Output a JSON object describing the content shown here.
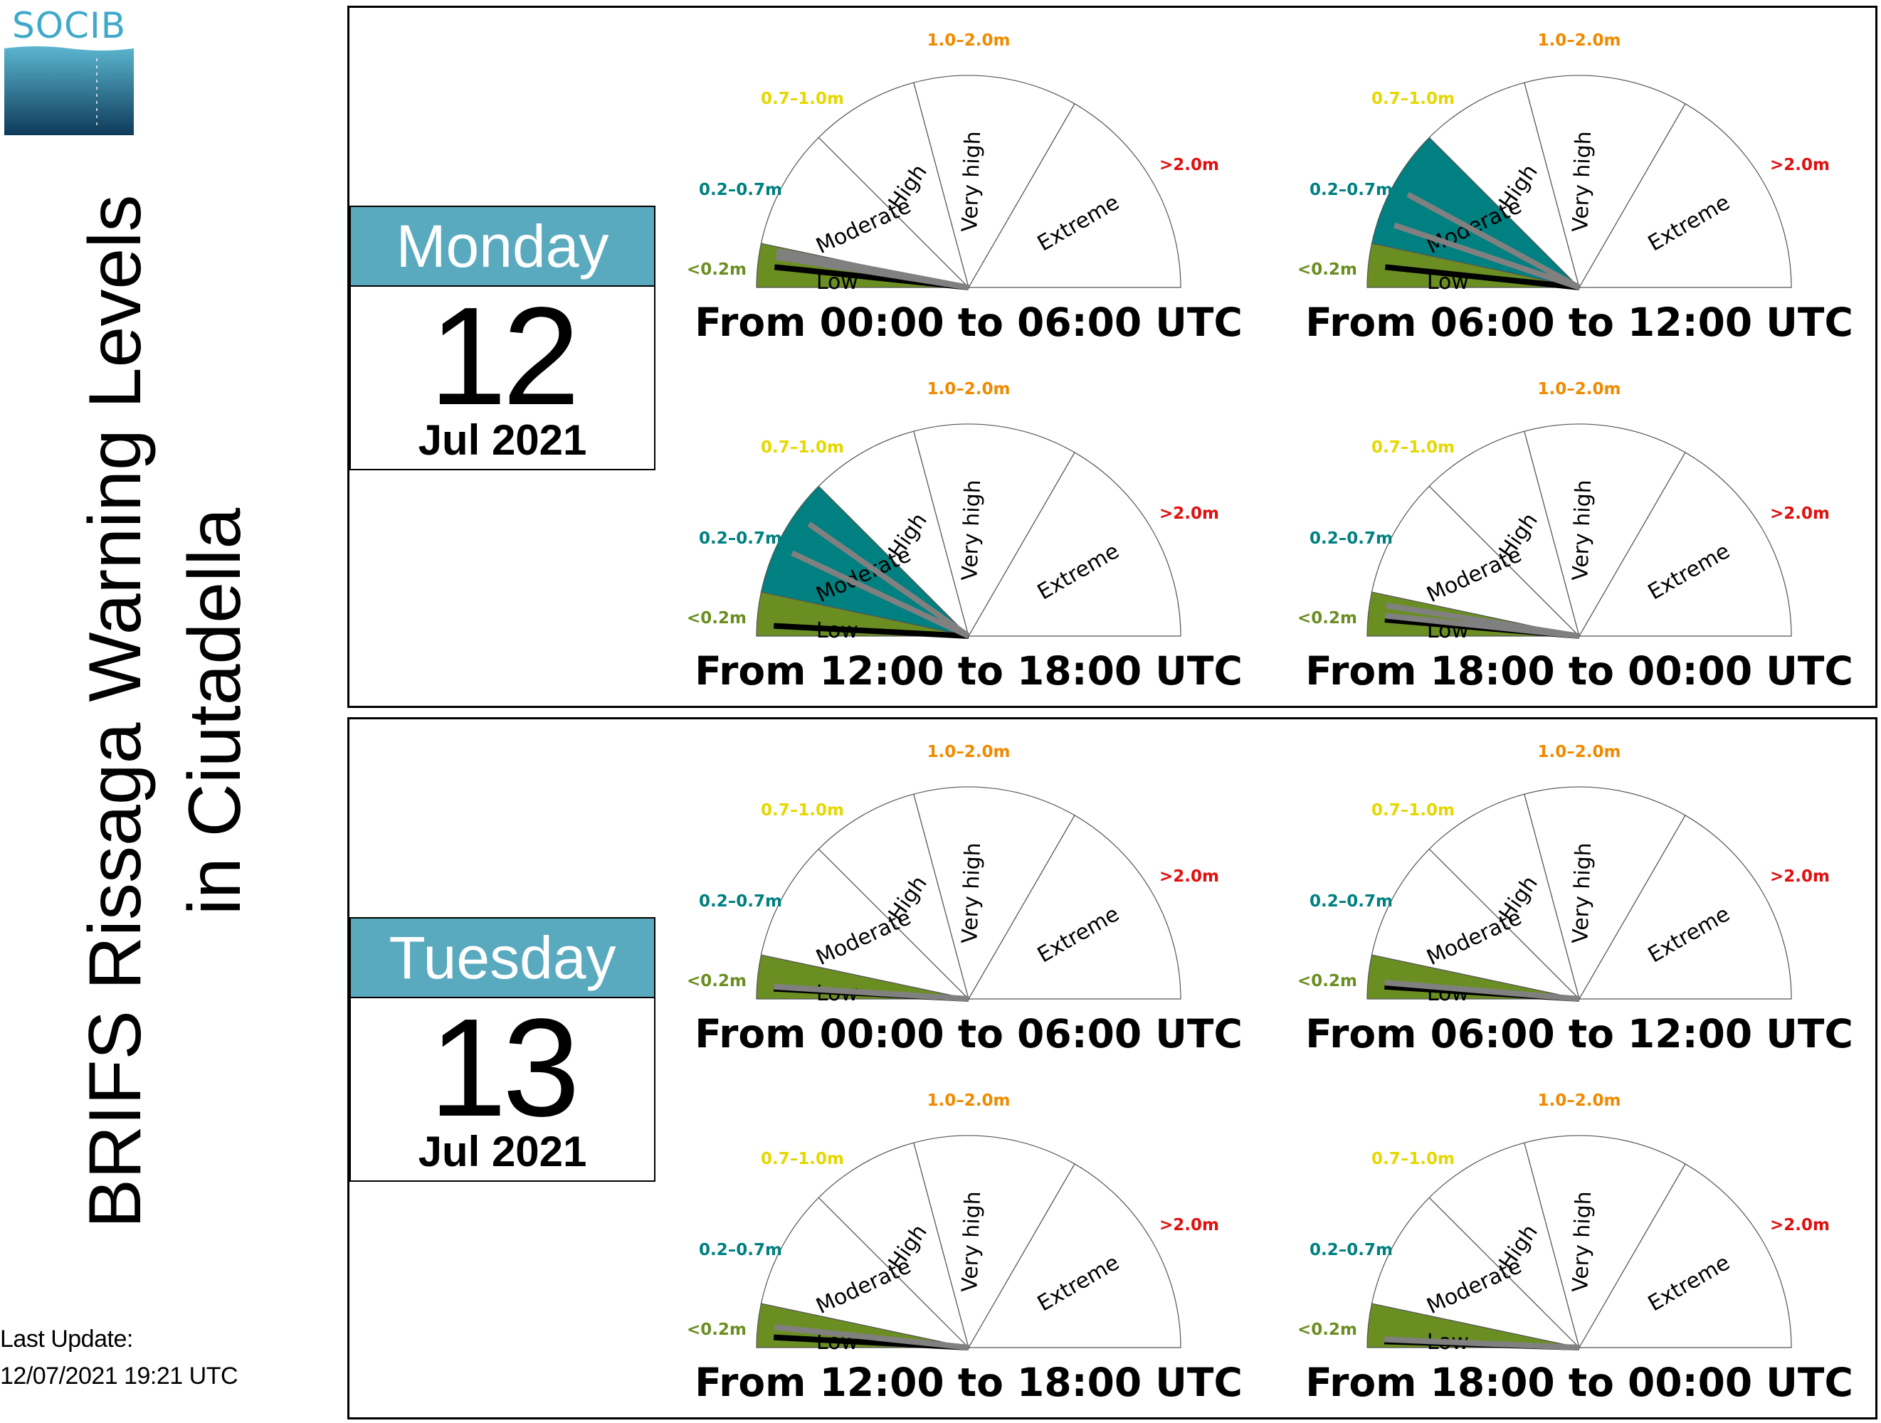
{
  "logo": {
    "text": "SOCIB"
  },
  "title": {
    "line1": "BRIFS Rissaga Warning Levels",
    "line2": "in Ciutadella"
  },
  "last_update": {
    "label": "Last Update:",
    "value": "12/07/2021 19:21 UTC"
  },
  "colors": {
    "low": "#6b8e23",
    "moderate": "#008080",
    "high": "#f0e000",
    "very_high": "#f08a00",
    "extreme": "#e01010",
    "thr_low": "#6b8e23",
    "thr_moderate": "#008080",
    "thr_high": "#e5d800",
    "thr_very_high": "#f08a00",
    "thr_extreme": "#e01010",
    "day_header": "#5aaabf",
    "needle_main": "#000000",
    "needle_alt": "#808080"
  },
  "chart_data": {
    "type": "gauge",
    "levels": [
      "Low",
      "Moderate",
      "High",
      "Very high",
      "Extreme"
    ],
    "thresholds": [
      "<0.2m",
      "0.2–0.7m",
      "0.7–1.0m",
      "1.0–2.0m",
      ">2.0m"
    ],
    "days": [
      {
        "dayname": "Monday",
        "day": "12",
        "month_year": "Jul 2021",
        "periods": [
          {
            "label": "From 00:00 to 06:00 UTC",
            "level": "Low",
            "needles_m": [
              0.1,
              0.15,
              0.18
            ]
          },
          {
            "label": "From 06:00 to 12:00 UTC",
            "level": "Moderate",
            "needles_m": [
              0.1,
              0.3,
              0.45
            ]
          },
          {
            "label": "From 12:00 to 18:00 UTC",
            "level": "Moderate",
            "needles_m": [
              0.05,
              0.4,
              0.55
            ]
          },
          {
            "label": "From 18:00 to 00:00 UTC",
            "level": "Low",
            "needles_m": [
              0.08,
              0.1,
              0.15
            ]
          }
        ]
      },
      {
        "dayname": "Tuesday",
        "day": "13",
        "month_year": "Jul 2021",
        "periods": [
          {
            "label": "From 00:00 to 06:00 UTC",
            "level": "Low",
            "needles_m": [
              0.05,
              0.06
            ]
          },
          {
            "label": "From 06:00 to 12:00 UTC",
            "level": "Low",
            "needles_m": [
              0.06,
              0.08
            ]
          },
          {
            "label": "From 12:00 to 18:00 UTC",
            "level": "Low",
            "needles_m": [
              0.05,
              0.1
            ]
          },
          {
            "label": "From 18:00 to 00:00 UTC",
            "level": "Low",
            "needles_m": [
              0.03,
              0.04
            ]
          }
        ]
      }
    ]
  }
}
